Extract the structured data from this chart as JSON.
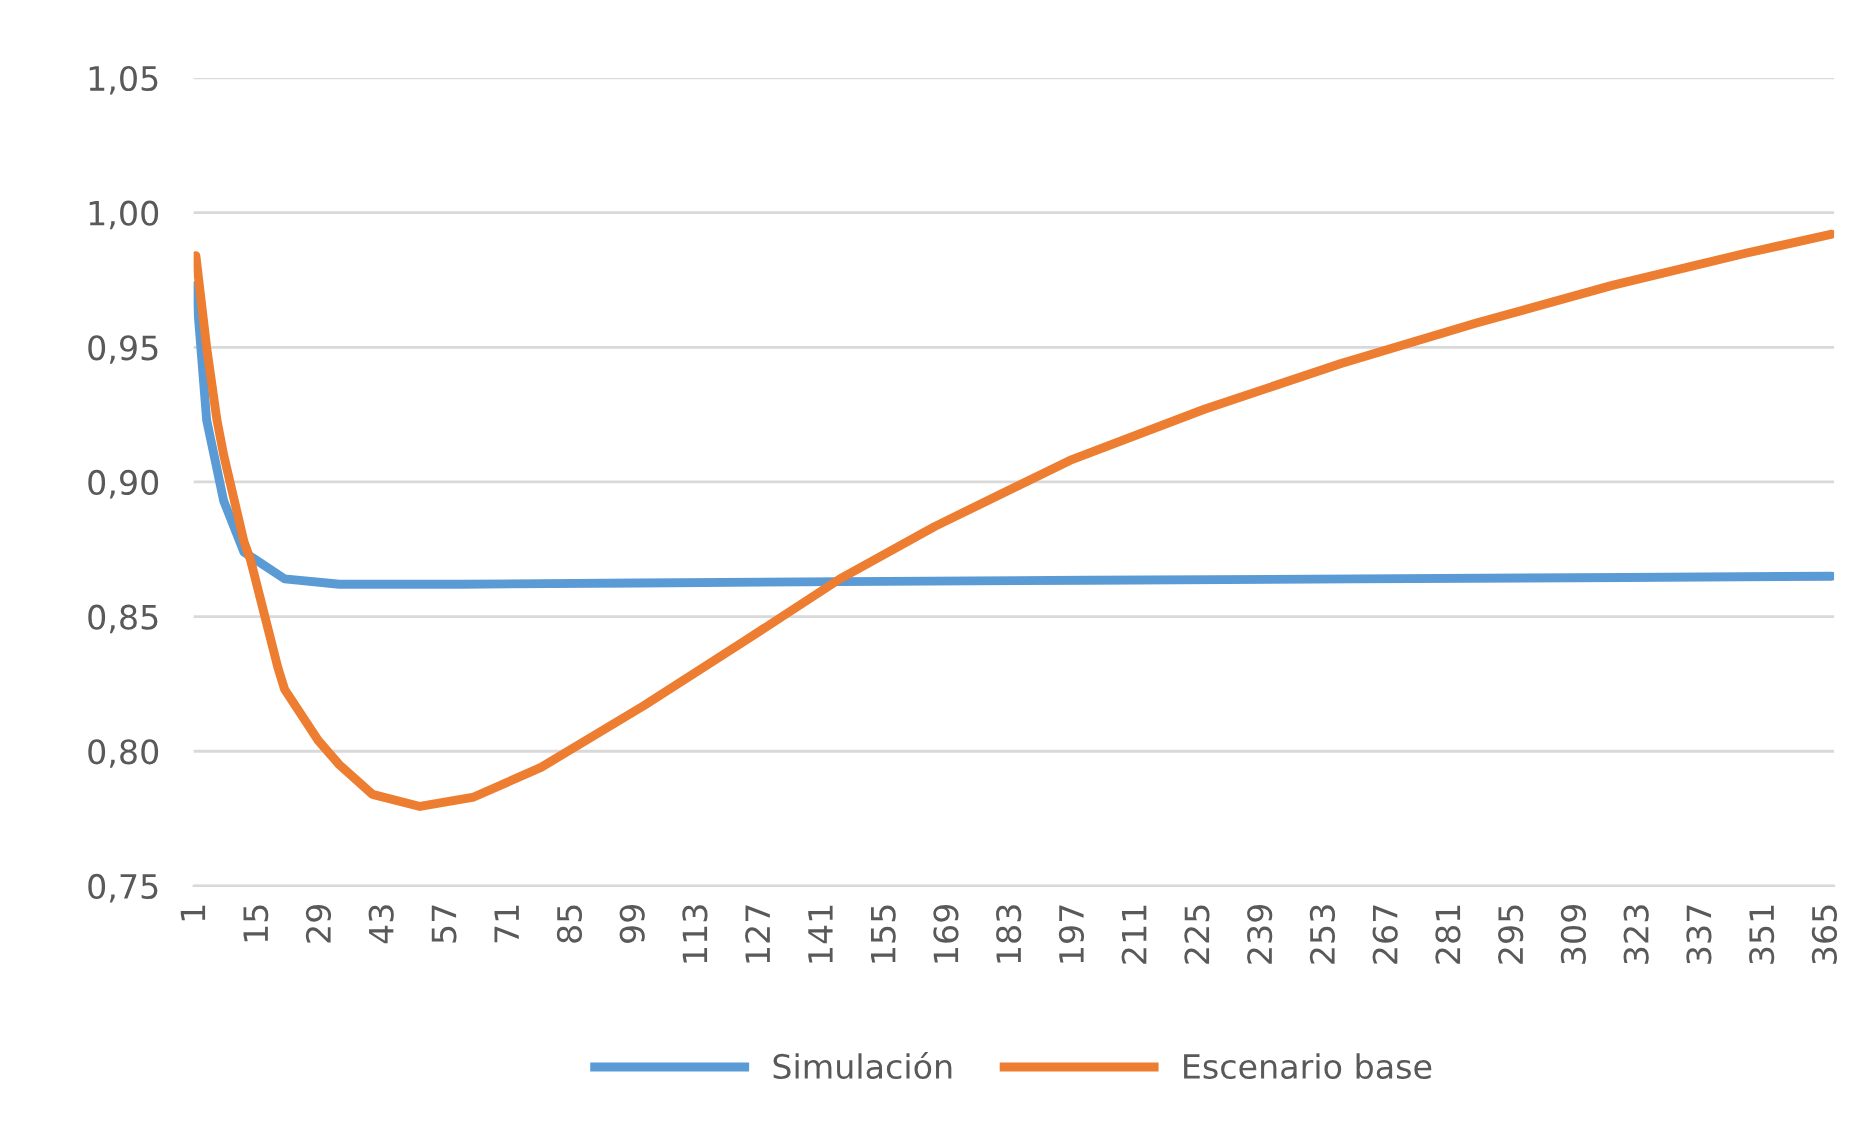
{
  "chart_data": {
    "type": "line",
    "x": [
      1,
      3.4,
      5.7,
      7.2,
      11.7,
      13.2,
      19.3,
      20.8,
      28.3,
      33,
      40.4,
      51,
      63,
      78,
      101,
      123.5,
      144.7,
      165.9,
      196,
      226,
      256.5,
      286.7,
      317,
      347,
      366
    ],
    "xlim": [
      0.5,
      366.5
    ],
    "xticks": [
      1,
      15,
      29,
      43,
      57,
      71,
      85,
      99,
      113,
      127,
      141,
      155,
      169,
      183,
      197,
      211,
      225,
      239,
      253,
      267,
      281,
      295,
      309,
      323,
      337,
      351,
      365
    ],
    "ylim": [
      0.75,
      1.05
    ],
    "yticks": [
      {
        "value": 0.75,
        "label": "0,75"
      },
      {
        "value": 0.8,
        "label": "0,80"
      },
      {
        "value": 0.85,
        "label": "0,85"
      },
      {
        "value": 0.9,
        "label": "0,90"
      },
      {
        "value": 0.95,
        "label": "0,95"
      },
      {
        "value": 1.0,
        "label": "1,00"
      },
      {
        "value": 1.05,
        "label": "1,05"
      }
    ],
    "grid": "y",
    "legend": "bottom",
    "marker": "none",
    "line_style": "solid",
    "series": [
      {
        "name": "Simulación",
        "color": "#5b9bd5",
        "x": [
          1,
          3.4,
          7.2,
          11.7,
          20.8,
          33,
          60,
          100,
          145,
          200,
          260,
          320,
          366
        ],
        "values": [
          0.973,
          0.923,
          0.893,
          0.874,
          0.864,
          0.862,
          0.862,
          0.8625,
          0.863,
          0.8635,
          0.864,
          0.8645,
          0.865
        ]
      },
      {
        "name": "Escenario base",
        "color": "#ed7d31",
        "values": [
          0.984,
          0.95,
          0.923,
          0.91,
          0.878,
          0.871,
          0.831,
          0.823,
          0.804,
          0.795,
          0.784,
          0.7795,
          0.783,
          0.794,
          0.817,
          0.841,
          0.864,
          0.8835,
          0.908,
          0.927,
          0.944,
          0.959,
          0.973,
          0.985,
          0.992
        ]
      }
    ]
  }
}
